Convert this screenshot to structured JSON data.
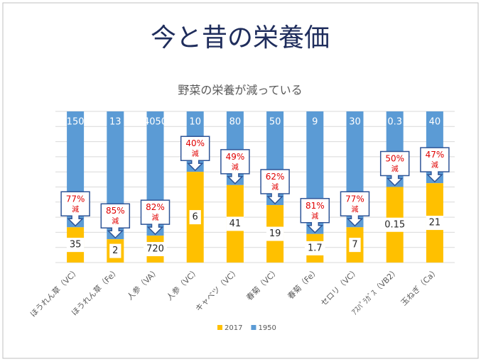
{
  "title": "今と昔の栄養価",
  "chart_data": {
    "type": "bar",
    "stacking": "percent",
    "title": "野菜の栄養が減っている",
    "categories": [
      "ほうれん草（VC）",
      "ほうれん草（Fe）",
      "人参（VA）",
      "人参（VC）",
      "キャベツ（VC）",
      "春菊（VC）",
      "春菊（Fe）",
      "セロリ（VC）",
      "ｱｽﾊﾟﾗｶﾞｽ（VB2）",
      "玉ねぎ（Ca）"
    ],
    "series": [
      {
        "name": "2017",
        "color": "#ffc000",
        "values": [
          35,
          2,
          720,
          6,
          41,
          19,
          1.7,
          7,
          0.15,
          21
        ]
      },
      {
        "name": "1950",
        "color": "#5b9bd5",
        "values": [
          150,
          13,
          4050,
          10,
          80,
          50,
          9,
          30,
          0.3,
          40
        ]
      }
    ],
    "annotations": [
      "77%減",
      "85%減",
      "82%減",
      "40%減",
      "49%減",
      "62%減",
      "81%減",
      "77%減",
      "50%減",
      "47%減"
    ],
    "ylim": [
      0,
      100
    ],
    "legend": "bottom"
  }
}
